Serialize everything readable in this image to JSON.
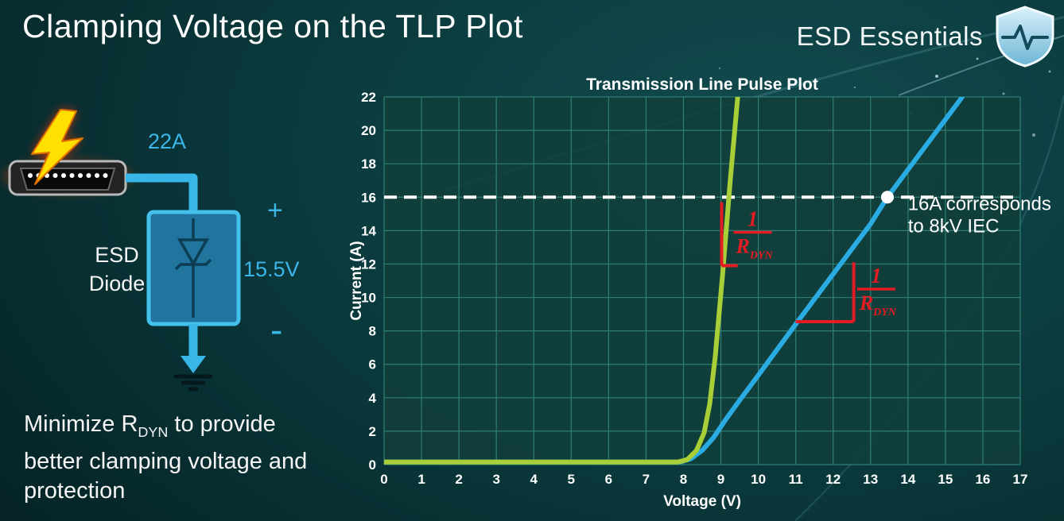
{
  "slide": {
    "title": "Clamping Voltage on the TLP Plot",
    "brand": "ESD Essentials"
  },
  "diagram": {
    "surge_current": "22A",
    "plus": "+",
    "minus": "-",
    "clamp_voltage": "15.5V",
    "device_label_line1": "ESD",
    "device_label_line2": "Diode",
    "accent_cyan": "#3ab6e8"
  },
  "note": {
    "prefix": "Minimize R",
    "subscript": "DYN",
    "suffix": " to provide better clamping voltage and protection"
  },
  "chart_data": {
    "type": "line",
    "title": "Transmission Line Pulse Plot",
    "xlabel": "Voltage (V)",
    "ylabel": "Current (A)",
    "xlim": [
      0,
      17
    ],
    "ylim": [
      0,
      22
    ],
    "xtick_step": 1,
    "ytick_step": 2,
    "grid": true,
    "grid_color": "#2e7f75",
    "plot_bg": "#113f3a",
    "text_color": "#ffffff",
    "accent_red": "#e31b23",
    "series": [
      {
        "name": "blue-diode-high-rdyn",
        "color": "#2aace3",
        "width": 6,
        "points": [
          [
            0,
            0.15
          ],
          [
            7.9,
            0.15
          ],
          [
            8.2,
            0.35
          ],
          [
            8.5,
            0.85
          ],
          [
            8.8,
            1.6
          ],
          [
            9.1,
            2.6
          ],
          [
            9.5,
            3.85
          ],
          [
            10,
            5.35
          ],
          [
            11,
            8.4
          ],
          [
            12,
            11.4
          ],
          [
            13,
            14.4
          ],
          [
            13.45,
            16
          ],
          [
            15.45,
            22
          ]
        ]
      },
      {
        "name": "green-diode-low-rdyn",
        "color": "#a8ce38",
        "width": 6,
        "points": [
          [
            0,
            0.15
          ],
          [
            7.85,
            0.15
          ],
          [
            8.1,
            0.3
          ],
          [
            8.35,
            0.85
          ],
          [
            8.55,
            1.9
          ],
          [
            8.7,
            3.6
          ],
          [
            8.85,
            6.5
          ],
          [
            9.05,
            11.5
          ],
          [
            9.25,
            17
          ],
          [
            9.45,
            22
          ]
        ]
      }
    ],
    "reference_line": {
      "y": 16,
      "color": "#ffffff",
      "dash": [
        16,
        9
      ],
      "width": 4
    },
    "marker_point": {
      "x": 13.45,
      "y": 16,
      "radius": 8,
      "color": "#ffffff"
    },
    "callout": {
      "lines": [
        "16A corresponds",
        "to 8kV IEC"
      ],
      "x": 13.7,
      "y": 15.9,
      "color": "#ffffff",
      "font_size": 24
    },
    "slope_markers": [
      {
        "vline": {
          "x": 9.02,
          "y1": 15.7,
          "y2": 11.9
        },
        "hline": {
          "y": 11.9,
          "x1": 9.02,
          "x2": 9.45
        },
        "fraction": {
          "numerator": "1",
          "denominator": "R",
          "den_sub": "DYN",
          "x": 9.85,
          "y": 13.9
        }
      },
      {
        "vline": {
          "x": 12.55,
          "y1": 12.1,
          "y2": 8.55
        },
        "hline": {
          "y": 8.55,
          "x1": 11.0,
          "x2": 12.55
        },
        "fraction": {
          "numerator": "1",
          "denominator": "R",
          "den_sub": "DYN",
          "x": 13.15,
          "y": 10.5
        }
      }
    ]
  }
}
